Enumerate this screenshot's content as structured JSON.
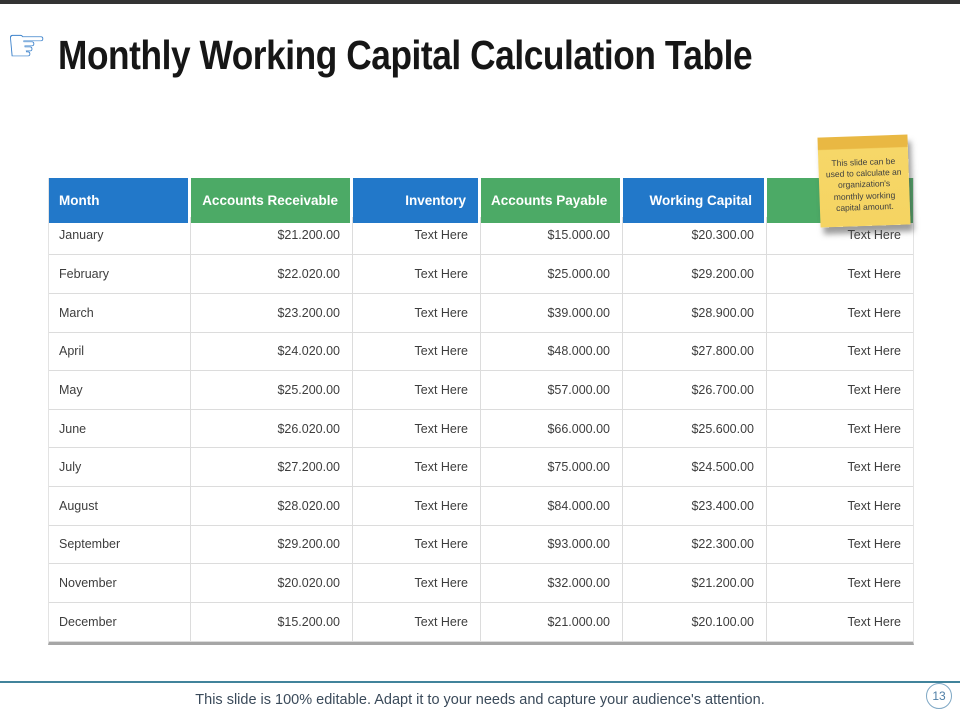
{
  "page": {
    "title": "Monthly Working Capital Calculation Table",
    "footer_text": "This slide is 100% editable. Adapt it to your needs and capture your audience's attention.",
    "page_number": "13"
  },
  "icons": {
    "title_icon": "pointing-hand-icon",
    "title_icon_glyph": "☞"
  },
  "sticky_note": {
    "text": "This slide can be used to calculate an organization's monthly working capital amount."
  },
  "colors": {
    "header_blue": "#2278c9",
    "header_green": "#4caa66",
    "note_yellow": "#f6d768",
    "note_strip": "#e9b843",
    "footer_divider_teal": "#41839b",
    "table_bottom_border": "#a6a6a6"
  },
  "table": {
    "columns": [
      {
        "label": "Month",
        "color": "#2278c9",
        "align": "left"
      },
      {
        "label": "Accounts Receivable",
        "color": "#4caa66",
        "align": "right"
      },
      {
        "label": "Inventory",
        "color": "#2278c9",
        "align": "right"
      },
      {
        "label": "Accounts Payable",
        "color": "#4caa66",
        "align": "left"
      },
      {
        "label": "Working Capital",
        "color": "#2278c9",
        "align": "right"
      },
      {
        "label": "",
        "color": "#4caa66",
        "align": "right"
      }
    ],
    "rows": [
      [
        "January",
        "$21.200.00",
        "Text Here",
        "$15.000.00",
        "$20.300.00",
        "Text Here"
      ],
      [
        "February",
        "$22.020.00",
        "Text Here",
        "$25.000.00",
        "$29.200.00",
        "Text Here"
      ],
      [
        "March",
        "$23.200.00",
        "Text Here",
        "$39.000.00",
        "$28.900.00",
        "Text Here"
      ],
      [
        "April",
        "$24.020.00",
        "Text Here",
        "$48.000.00",
        "$27.800.00",
        "Text Here"
      ],
      [
        "May",
        "$25.200.00",
        "Text Here",
        "$57.000.00",
        "$26.700.00",
        "Text Here"
      ],
      [
        "June",
        "$26.020.00",
        "Text Here",
        "$66.000.00",
        "$25.600.00",
        "Text Here"
      ],
      [
        "July",
        "$27.200.00",
        "Text Here",
        "$75.000.00",
        "$24.500.00",
        "Text Here"
      ],
      [
        "August",
        "$28.020.00",
        "Text Here",
        "$84.000.00",
        "$23.400.00",
        "Text Here"
      ],
      [
        "September",
        "$29.200.00",
        "Text Here",
        "$93.000.00",
        "$22.300.00",
        "Text Here"
      ],
      [
        "November",
        "$20.020.00",
        "Text Here",
        "$32.000.00",
        "$21.200.00",
        "Text Here"
      ],
      [
        "December",
        "$15.200.00",
        "Text Here",
        "$21.000.00",
        "$20.100.00",
        "Text Here"
      ]
    ]
  }
}
